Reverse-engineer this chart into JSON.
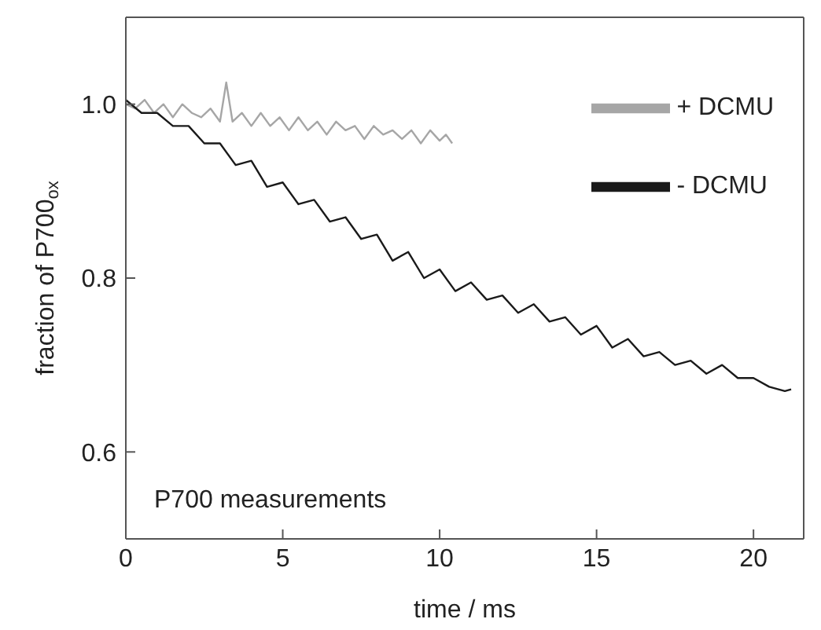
{
  "chart_data": {
    "type": "line",
    "xlabel": "time / ms",
    "ylabel": "fraction of P700$_{ox}$",
    "annotations": [
      "P700 measurements"
    ],
    "xlim": [
      0,
      21.6
    ],
    "ylim": [
      0.5,
      1.1
    ],
    "xticks": [
      0,
      5,
      10,
      15,
      20
    ],
    "yticks": [
      0.6,
      0.8,
      {
        "value": 1,
        "label": "1.0"
      }
    ],
    "grid": false,
    "legend": "top right",
    "marker": "none",
    "line_style": "solid",
    "series": [
      {
        "name": "+ DCMU",
        "color": "#a6a6a6",
        "x": [
          0,
          0.3,
          0.6,
          0.9,
          1.2,
          1.5,
          1.8,
          2.1,
          2.4,
          2.7,
          3.0,
          3.2,
          3.4,
          3.7,
          4.0,
          4.3,
          4.6,
          4.9,
          5.2,
          5.5,
          5.8,
          6.1,
          6.4,
          6.7,
          7.0,
          7.3,
          7.6,
          7.9,
          8.2,
          8.5,
          8.8,
          9.1,
          9.4,
          9.7,
          10.0,
          10.2,
          10.4
        ],
        "values": [
          1.0,
          0.995,
          1.005,
          0.99,
          1.0,
          0.985,
          1.0,
          0.99,
          0.985,
          0.995,
          0.98,
          1.025,
          0.98,
          0.99,
          0.975,
          0.99,
          0.975,
          0.985,
          0.97,
          0.985,
          0.97,
          0.98,
          0.965,
          0.98,
          0.97,
          0.975,
          0.96,
          0.975,
          0.965,
          0.97,
          0.96,
          0.97,
          0.955,
          0.97,
          0.958,
          0.965,
          0.955
        ]
      },
      {
        "name": "- DCMU",
        "color": "#1a1a1a",
        "x": [
          0,
          0.5,
          1,
          1.5,
          2,
          2.5,
          3,
          3.5,
          4,
          4.5,
          5,
          5.5,
          6,
          6.5,
          7,
          7.5,
          8,
          8.5,
          9,
          9.5,
          10,
          10.5,
          11,
          11.5,
          12,
          12.5,
          13,
          13.5,
          14,
          14.5,
          15,
          15.5,
          16,
          16.5,
          17,
          17.5,
          18,
          18.5,
          19,
          19.5,
          20,
          20.5,
          21,
          21.2
        ],
        "values": [
          1.005,
          0.99,
          0.99,
          0.975,
          0.975,
          0.955,
          0.955,
          0.93,
          0.935,
          0.905,
          0.91,
          0.885,
          0.89,
          0.865,
          0.87,
          0.845,
          0.85,
          0.82,
          0.83,
          0.8,
          0.81,
          0.785,
          0.795,
          0.775,
          0.78,
          0.76,
          0.77,
          0.75,
          0.755,
          0.735,
          0.745,
          0.72,
          0.73,
          0.71,
          0.715,
          0.7,
          0.705,
          0.69,
          0.7,
          0.685,
          0.685,
          0.675,
          0.67,
          0.672
        ]
      }
    ]
  }
}
